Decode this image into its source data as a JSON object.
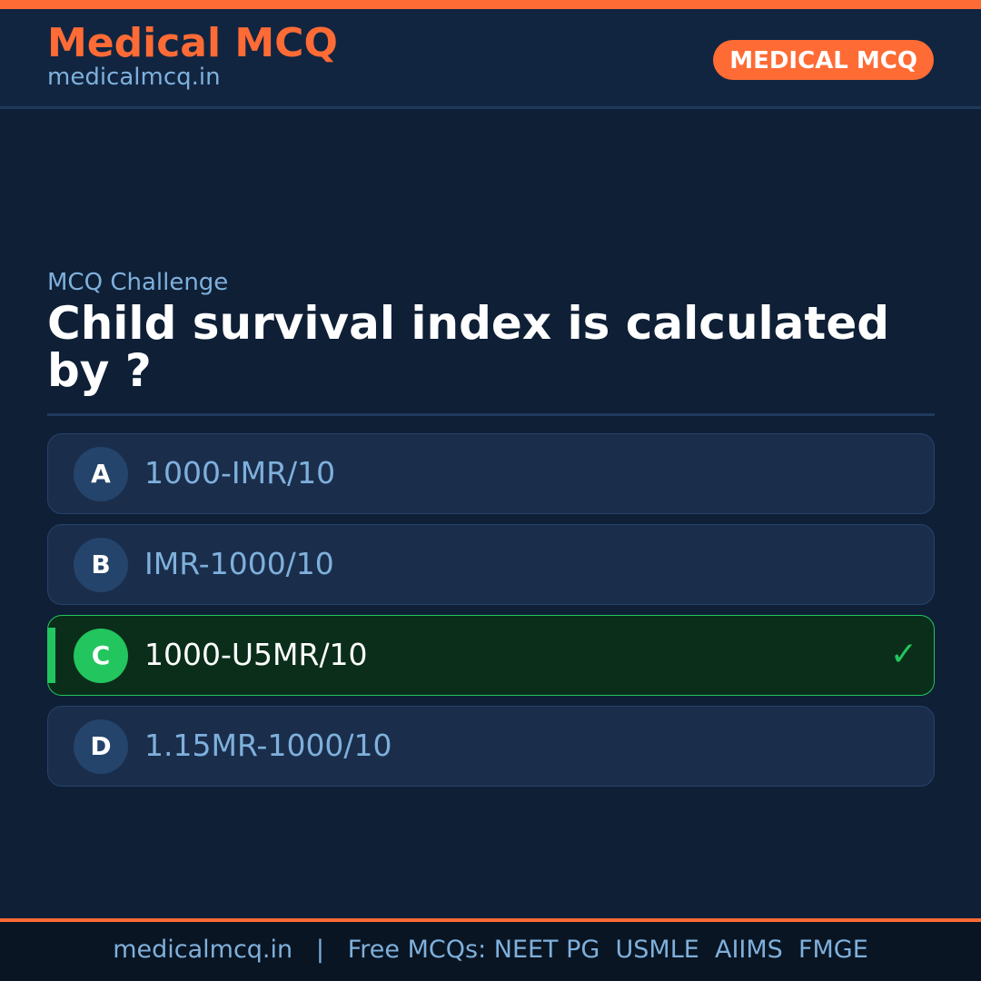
{
  "header": {
    "brand": "Medical MCQ",
    "site": "medicalmcq.in",
    "badge": "MEDICAL MCQ"
  },
  "colors": {
    "accent": "#ff6b35",
    "correct": "#22c55e",
    "background": "#0e1f36"
  },
  "question": {
    "kicker": "MCQ Challenge",
    "text": "Child survival index is calculated by ?"
  },
  "options": [
    {
      "letter": "A",
      "text": "1000-IMR/10",
      "correct": false
    },
    {
      "letter": "B",
      "text": "IMR-1000/10",
      "correct": false
    },
    {
      "letter": "C",
      "text": "1000-U5MR/10",
      "correct": true,
      "icon": "checkmark-icon",
      "mark": "✓"
    },
    {
      "letter": "D",
      "text": "1.15MR-1000/10",
      "correct": false
    }
  ],
  "footer": {
    "text": "medicalmcq.in   |   Free MCQs: NEET PG  USMLE  AIIMS  FMGE"
  }
}
